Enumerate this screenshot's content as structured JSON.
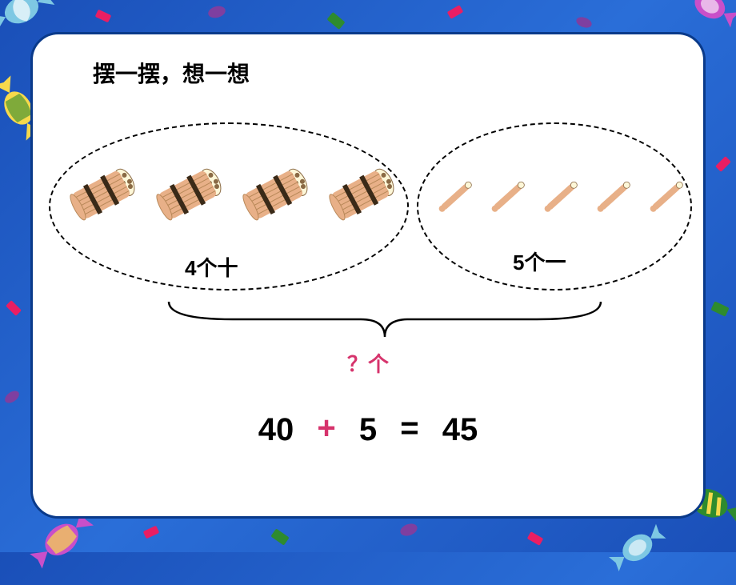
{
  "background": {
    "gradient_colors": [
      "#1a4fb8",
      "#2a6ed8",
      "#1a4fb8"
    ],
    "frame_color": "#ffffff",
    "frame_border_color": "#0a3a8a"
  },
  "title": "摆一摆，想一想",
  "groups": {
    "left": {
      "label": "4个十",
      "bundle_count": 4,
      "bundle_color": "#e8b088",
      "bundle_tip_color": "#fdf7d8",
      "bundle_band_color": "#3a2a18"
    },
    "right": {
      "label": "5个一",
      "stick_count": 5,
      "stick_color": "#e8b088",
      "stick_tip_color": "#fdf7d8"
    },
    "oval_border_style": "dashed",
    "oval_border_color": "#000000"
  },
  "brace": {
    "stroke_color": "#000000",
    "stroke_width": 2.5
  },
  "question": {
    "text": "？个",
    "color": "#d6336c",
    "fontsize": 26
  },
  "equation": {
    "operand1": "40",
    "operator": "+",
    "operand2": "5",
    "equals": "=",
    "result": "45",
    "number_color": "#000000",
    "operator_color": "#d6336c",
    "fontsize": 40
  },
  "candies": [
    {
      "pos": "top-left",
      "colors": [
        "#7ec8e3",
        "#ffffff"
      ],
      "rotate": -25
    },
    {
      "pos": "left-mid",
      "colors": [
        "#f7d94c",
        "#2e8b2e"
      ],
      "rotate": 60
    },
    {
      "pos": "top-right",
      "colors": [
        "#c94fc9",
        "#ffffff"
      ],
      "rotate": 30
    },
    {
      "pos": "bottom-left",
      "colors": [
        "#c94fc9",
        "#f7d94c"
      ],
      "rotate": -40
    },
    {
      "pos": "bottom-right-1",
      "colors": [
        "#2e8b2e",
        "#f7d94c"
      ],
      "rotate": 20
    },
    {
      "pos": "bottom-right-2",
      "colors": [
        "#7ec8e3",
        "#ffffff"
      ],
      "rotate": -35
    }
  ],
  "confetti_colors": [
    "#e91e63",
    "#7e3fa0",
    "#2e8b2e"
  ]
}
